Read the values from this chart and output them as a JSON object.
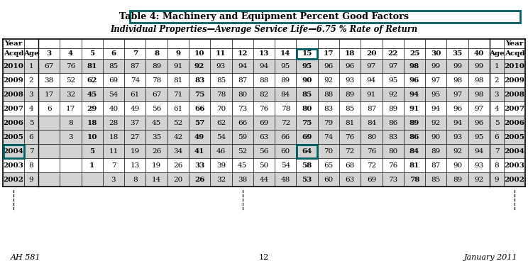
{
  "title_prefix": "Table 4: ",
  "title_main": "Machinery and Equipment Percent Good Factors",
  "subtitle": "Individual Properties—Average Service Life—6.75 % Rate of Return",
  "header_row1": [
    "Year",
    "",
    "",
    "",
    "",
    "",
    "",
    "",
    "",
    "",
    "",
    "",
    "",
    "",
    "",
    "",
    "",
    "",
    "",
    "",
    "",
    "",
    "",
    "",
    "Year"
  ],
  "header_row2": [
    "Acqd",
    "Age",
    "3",
    "4",
    "5",
    "6",
    "7",
    "8",
    "9",
    "10",
    "11",
    "12",
    "13",
    "14",
    "15",
    "17",
    "18",
    "20",
    "22",
    "25",
    "30",
    "35",
    "40",
    "Age",
    "Acqd"
  ],
  "rows": [
    [
      "2010",
      "1",
      "67",
      "76",
      "81",
      "85",
      "87",
      "89",
      "91",
      "92",
      "93",
      "94",
      "94",
      "95",
      "95",
      "96",
      "96",
      "97",
      "97",
      "98",
      "99",
      "99",
      "99",
      "1",
      "2010"
    ],
    [
      "2009",
      "2",
      "38",
      "52",
      "62",
      "69",
      "74",
      "78",
      "81",
      "83",
      "85",
      "87",
      "88",
      "89",
      "90",
      "92",
      "93",
      "94",
      "95",
      "96",
      "97",
      "98",
      "98",
      "2",
      "2009"
    ],
    [
      "2008",
      "3",
      "17",
      "32",
      "45",
      "54",
      "61",
      "67",
      "71",
      "75",
      "78",
      "80",
      "82",
      "84",
      "85",
      "88",
      "89",
      "91",
      "92",
      "94",
      "95",
      "97",
      "98",
      "3",
      "2008"
    ],
    [
      "2007",
      "4",
      "6",
      "17",
      "29",
      "40",
      "49",
      "56",
      "61",
      "66",
      "70",
      "73",
      "76",
      "78",
      "80",
      "83",
      "85",
      "87",
      "89",
      "91",
      "94",
      "96",
      "97",
      "4",
      "2007"
    ],
    [
      "2006",
      "5",
      "",
      "8",
      "18",
      "28",
      "37",
      "45",
      "52",
      "57",
      "62",
      "66",
      "69",
      "72",
      "75",
      "79",
      "81",
      "84",
      "86",
      "89",
      "92",
      "94",
      "96",
      "5",
      "2006"
    ],
    [
      "2005",
      "6",
      "",
      "3",
      "10",
      "18",
      "27",
      "35",
      "42",
      "49",
      "54",
      "59",
      "63",
      "66",
      "69",
      "74",
      "76",
      "80",
      "83",
      "86",
      "90",
      "93",
      "95",
      "6",
      "2005"
    ],
    [
      "2004",
      "7",
      "",
      "",
      "5",
      "11",
      "19",
      "26",
      "34",
      "41",
      "46",
      "52",
      "56",
      "60",
      "64",
      "70",
      "72",
      "76",
      "80",
      "84",
      "89",
      "92",
      "94",
      "7",
      "2004"
    ],
    [
      "2003",
      "8",
      "",
      "",
      "1",
      "7",
      "13",
      "19",
      "26",
      "33",
      "39",
      "45",
      "50",
      "54",
      "58",
      "65",
      "68",
      "72",
      "76",
      "81",
      "87",
      "90",
      "93",
      "8",
      "2003"
    ],
    [
      "2002",
      "9",
      "",
      "",
      "",
      "3",
      "8",
      "14",
      "20",
      "26",
      "32",
      "38",
      "44",
      "48",
      "53",
      "60",
      "63",
      "69",
      "73",
      "78",
      "85",
      "89",
      "92",
      "9",
      "2002"
    ]
  ],
  "shaded_rows": [
    0,
    2,
    4,
    5,
    6,
    8
  ],
  "shaded_color": "#d3d3d3",
  "teal": "#006060",
  "background_color": "#ffffff",
  "bold_data_cols": [
    4,
    9,
    14,
    19
  ],
  "footer_left": "AH 581",
  "footer_center": "12",
  "footer_right": "January 2011",
  "highlight_row_idx": 6,
  "highlight_col_idx": 14,
  "highlight_year_col": 0,
  "life_header_col": 14
}
